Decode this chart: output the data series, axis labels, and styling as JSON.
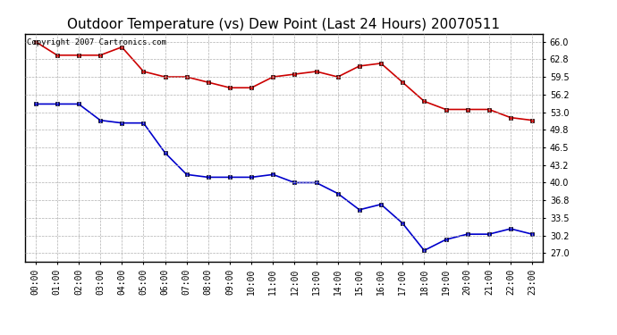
{
  "title": "Outdoor Temperature (vs) Dew Point (Last 24 Hours) 20070511",
  "copyright_text": "Copyright 2007 Cartronics.com",
  "hours": [
    "00:00",
    "01:00",
    "02:00",
    "03:00",
    "04:00",
    "05:00",
    "06:00",
    "07:00",
    "08:00",
    "09:00",
    "10:00",
    "11:00",
    "12:00",
    "13:00",
    "14:00",
    "15:00",
    "16:00",
    "17:00",
    "18:00",
    "19:00",
    "20:00",
    "21:00",
    "22:00",
    "23:00"
  ],
  "temp": [
    66.0,
    63.5,
    63.5,
    63.5,
    65.0,
    60.5,
    59.5,
    59.5,
    58.5,
    57.5,
    57.5,
    59.5,
    60.0,
    60.5,
    59.5,
    61.5,
    62.0,
    58.5,
    55.0,
    53.5,
    53.5,
    53.5,
    52.0,
    51.5
  ],
  "dew": [
    54.5,
    54.5,
    54.5,
    51.5,
    51.0,
    51.0,
    45.5,
    41.5,
    41.0,
    41.0,
    41.0,
    41.5,
    40.0,
    40.0,
    38.0,
    35.0,
    36.0,
    32.5,
    27.5,
    29.5,
    30.5,
    30.5,
    31.5,
    30.5
  ],
  "temp_color": "#cc0000",
  "dew_color": "#0000cc",
  "bg_color": "#ffffff",
  "grid_color": "#b0b0b0",
  "y_ticks": [
    27.0,
    30.2,
    33.5,
    36.8,
    40.0,
    43.2,
    46.5,
    49.8,
    53.0,
    56.2,
    59.5,
    62.8,
    66.0
  ],
  "ylim": [
    25.5,
    67.5
  ],
  "marker": "s",
  "marker_size": 3,
  "linewidth": 1.2,
  "title_fontsize": 11,
  "tick_fontsize": 7,
  "copyright_fontsize": 6.5
}
